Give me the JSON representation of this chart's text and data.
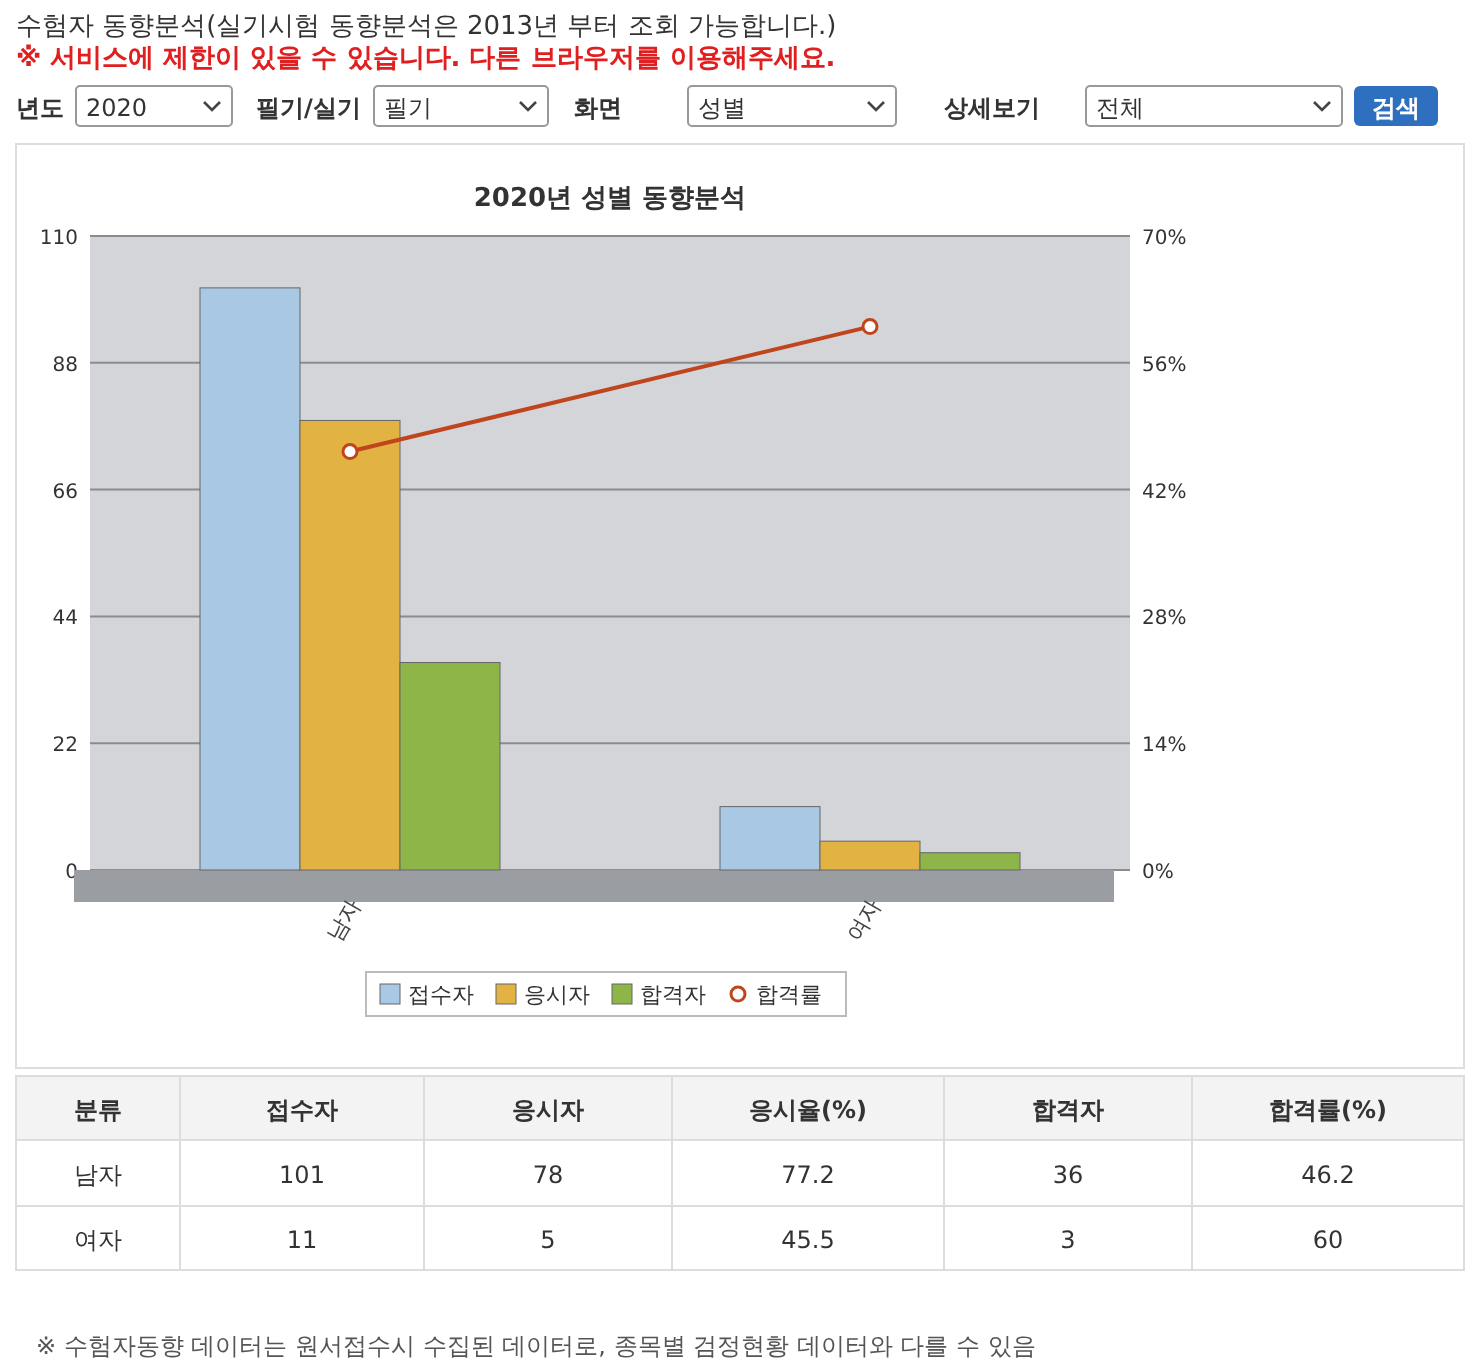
{
  "chart_data": [
    {
      "type": "other",
      "title": "수험자 동향분석(실기시험 동향분석은 2013년 부터 조회 가능합니다.)",
      "subtitle": "※ 서비스에 제한이 있을 수 있습니다. 다른 브라우저를 이용해주세요.",
      "annotations": [
        "년도",
        "2020",
        "필기/실기",
        "필기",
        "화면",
        "성별",
        "상세보기",
        "전체",
        "검색"
      ]
    },
    {
      "type": "bar",
      "title": "2020년 성별 동향분석",
      "categories": [
        "남자",
        "여자"
      ],
      "series": [
        {
          "name": "접수자",
          "color": "#a9c8e4",
          "values": [
            101,
            11
          ]
        },
        {
          "name": "응시자",
          "color": "#e2b342",
          "values": [
            78,
            5
          ]
        },
        {
          "name": "합격자",
          "color": "#8db548",
          "values": [
            36,
            3
          ]
        },
        {
          "name": "합격률",
          "type": "line",
          "axis": "y2",
          "color": "#c0451c",
          "values": [
            46.2,
            60
          ],
          "marker": "circle",
          "line_style": "solid"
        }
      ],
      "ylim": [
        0,
        110
      ],
      "yticks": [
        0,
        22,
        44,
        66,
        88,
        110
      ],
      "y2lim": [
        0,
        70
      ],
      "y2ticks": [
        {
          "value": 0,
          "label": "0%"
        },
        {
          "value": 14,
          "label": "14%"
        },
        {
          "value": 28,
          "label": "28%"
        },
        {
          "value": 42,
          "label": "42%"
        },
        {
          "value": 56,
          "label": "56%"
        },
        {
          "value": 70,
          "label": "70%"
        }
      ],
      "grid": "y",
      "legend": "bottom"
    },
    {
      "type": "other",
      "annotations": [
        "분류",
        "접수자",
        "응시자",
        "응시율(%)",
        "합격자",
        "합격률(%)",
        "남자",
        "101",
        "78",
        "77.2",
        "36",
        "46.2",
        "여자",
        "11",
        "5",
        "45.5",
        "3",
        "60",
        "※ 수험자동향 데이터는 원서접수시 수집된 데이터로, 종목별 검정현황 데이터와 다를 수 있음"
      ]
    }
  ]
}
